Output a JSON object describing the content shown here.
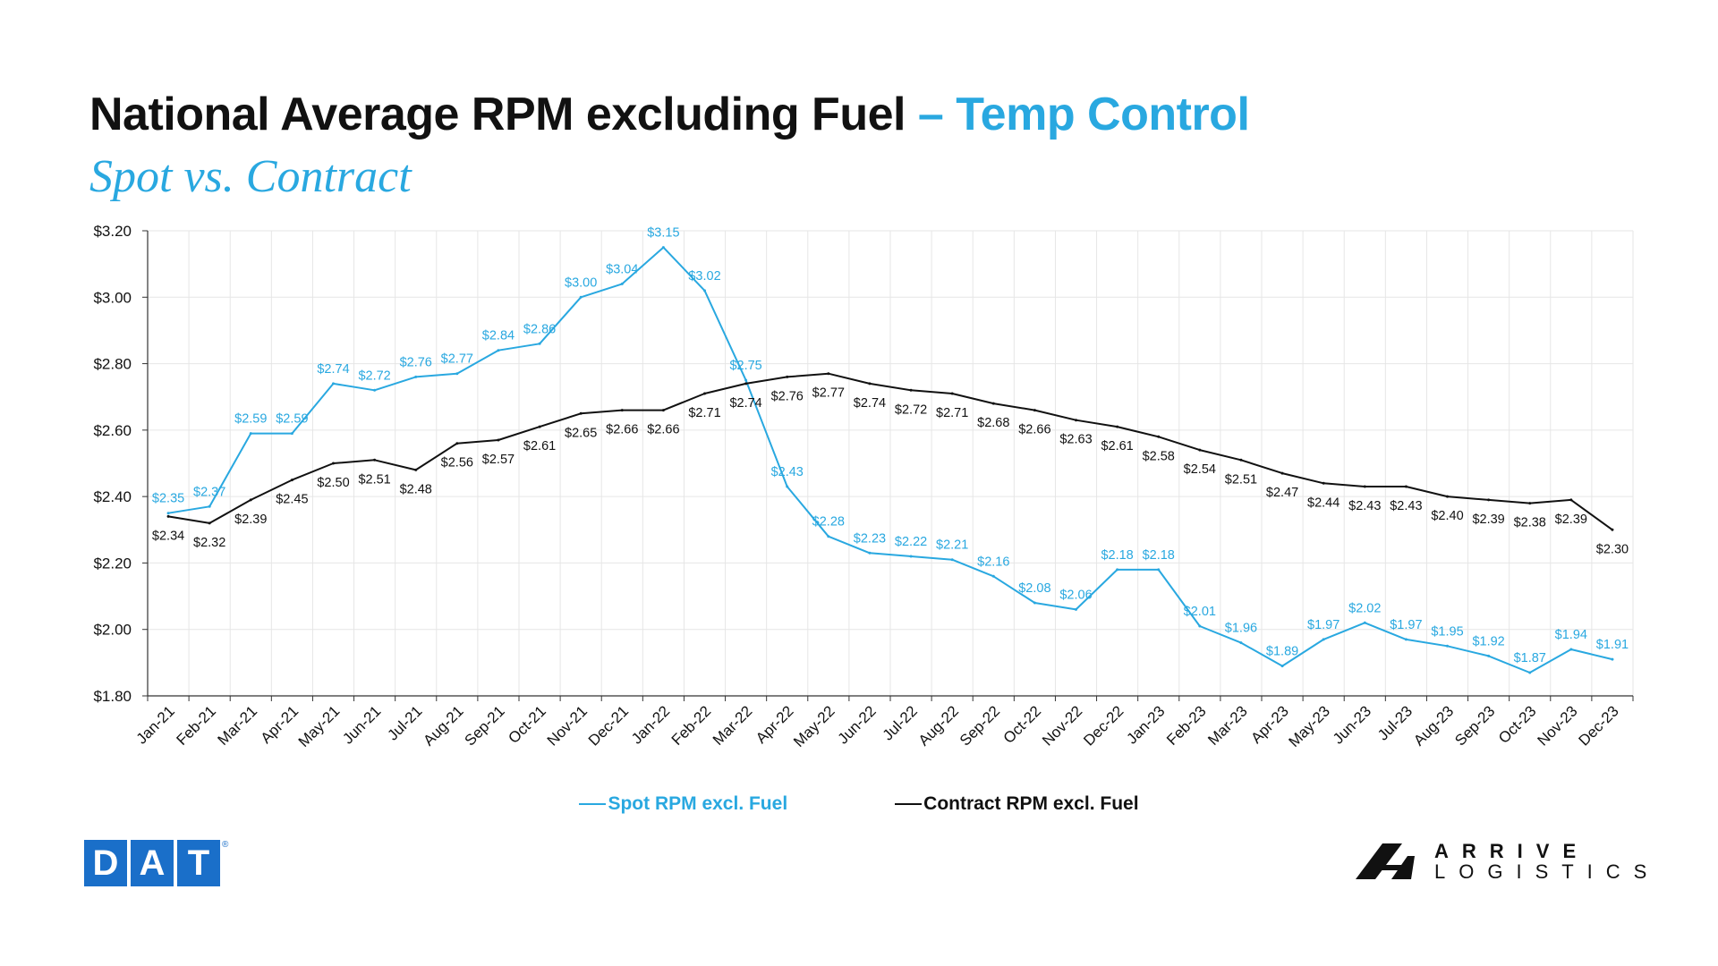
{
  "header": {
    "title_main": "National Average RPM excluding Fuel",
    "title_accent": "– Temp Control",
    "subtitle": "Spot vs. Contract"
  },
  "colors": {
    "spot": "#29a8e0",
    "contract": "#111111",
    "grid": "#e6e6e6",
    "axis": "#333333",
    "dat_blue": "#1a6fc9"
  },
  "logos": {
    "dat_letters": [
      "D",
      "A",
      "T"
    ],
    "dat_reg": "®",
    "arrive_line1": "ARRIVE",
    "arrive_line2": "LOGISTICS"
  },
  "chart_data": {
    "type": "line",
    "categories": [
      "Jan-21",
      "Feb-21",
      "Mar-21",
      "Apr-21",
      "May-21",
      "Jun-21",
      "Jul-21",
      "Aug-21",
      "Sep-21",
      "Oct-21",
      "Nov-21",
      "Dec-21",
      "Jan-22",
      "Feb-22",
      "Mar-22",
      "Apr-22",
      "May-22",
      "Jun-22",
      "Jul-22",
      "Aug-22",
      "Sep-22",
      "Oct-22",
      "Nov-22",
      "Dec-22",
      "Jan-23",
      "Feb-23",
      "Mar-23",
      "Apr-23",
      "May-23",
      "Jun-23",
      "Jul-23",
      "Aug-23",
      "Sep-23",
      "Oct-23",
      "Nov-23",
      "Dec-23"
    ],
    "series": [
      {
        "name": "Spot RPM excl. Fuel",
        "values": [
          2.35,
          2.37,
          2.59,
          2.59,
          2.74,
          2.72,
          2.76,
          2.77,
          2.84,
          2.86,
          3.0,
          3.04,
          3.15,
          3.02,
          2.75,
          2.43,
          2.28,
          2.23,
          2.22,
          2.21,
          2.16,
          2.08,
          2.06,
          2.18,
          2.18,
          2.01,
          1.96,
          1.89,
          1.97,
          2.02,
          1.97,
          1.95,
          1.92,
          1.87,
          1.94,
          1.91
        ]
      },
      {
        "name": "Contract RPM excl. Fuel",
        "values": [
          2.34,
          2.32,
          2.39,
          2.45,
          2.5,
          2.51,
          2.48,
          2.56,
          2.57,
          2.61,
          2.65,
          2.66,
          2.66,
          2.71,
          2.74,
          2.76,
          2.77,
          2.74,
          2.72,
          2.71,
          2.68,
          2.66,
          2.63,
          2.61,
          2.58,
          2.54,
          2.51,
          2.47,
          2.44,
          2.43,
          2.43,
          2.4,
          2.39,
          2.38,
          2.39,
          2.3
        ]
      }
    ],
    "ylim": [
      1.8,
      3.2
    ],
    "yticks": [
      "$1.80",
      "$2.00",
      "$2.20",
      "$2.40",
      "$2.60",
      "$2.80",
      "$3.00",
      "$3.20"
    ],
    "value_prefix": "$",
    "grid": true,
    "legend_position": "bottom"
  }
}
